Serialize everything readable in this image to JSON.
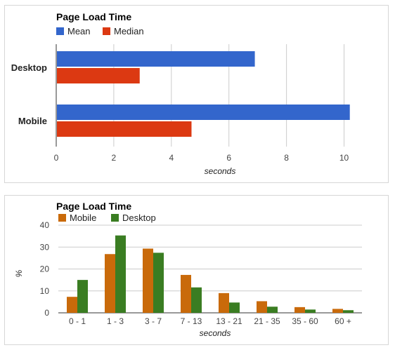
{
  "chart_data": [
    {
      "type": "bar",
      "orientation": "horizontal",
      "title": "Page Load Time",
      "categories": [
        "Desktop",
        "Mobile"
      ],
      "series": [
        {
          "name": "Mean",
          "color": "#3366cc",
          "values": [
            6.9,
            10.2
          ]
        },
        {
          "name": "Median",
          "color": "#dc3912",
          "values": [
            2.9,
            4.7
          ]
        }
      ],
      "xlabel": "seconds",
      "ylabel": "",
      "xlim": [
        0,
        10.5
      ],
      "xticks": [
        "0",
        "2",
        "4",
        "6",
        "8",
        "10"
      ],
      "grid": true,
      "legend": "top-left"
    },
    {
      "type": "bar",
      "orientation": "vertical",
      "title": "Page Load Time",
      "categories": [
        "0 - 1",
        "1 - 3",
        "3 - 7",
        "7 - 13",
        "13 - 21",
        "21 - 35",
        "35 - 60",
        "60 +"
      ],
      "series": [
        {
          "name": "Mobile",
          "color": "#c96a0a",
          "values": [
            7.3,
            26.8,
            29.3,
            17.3,
            9,
            5.3,
            2.6,
            1.8
          ]
        },
        {
          "name": "Desktop",
          "color": "#3a7d22",
          "values": [
            15,
            35.3,
            27.4,
            11.6,
            4.7,
            2.8,
            1.5,
            1.2
          ]
        }
      ],
      "xlabel": "seconds",
      "ylabel": "%",
      "ylim": [
        0,
        40
      ],
      "yticks": [
        "0",
        "10",
        "20",
        "30",
        "40"
      ],
      "grid": true,
      "legend": "top-left"
    }
  ]
}
